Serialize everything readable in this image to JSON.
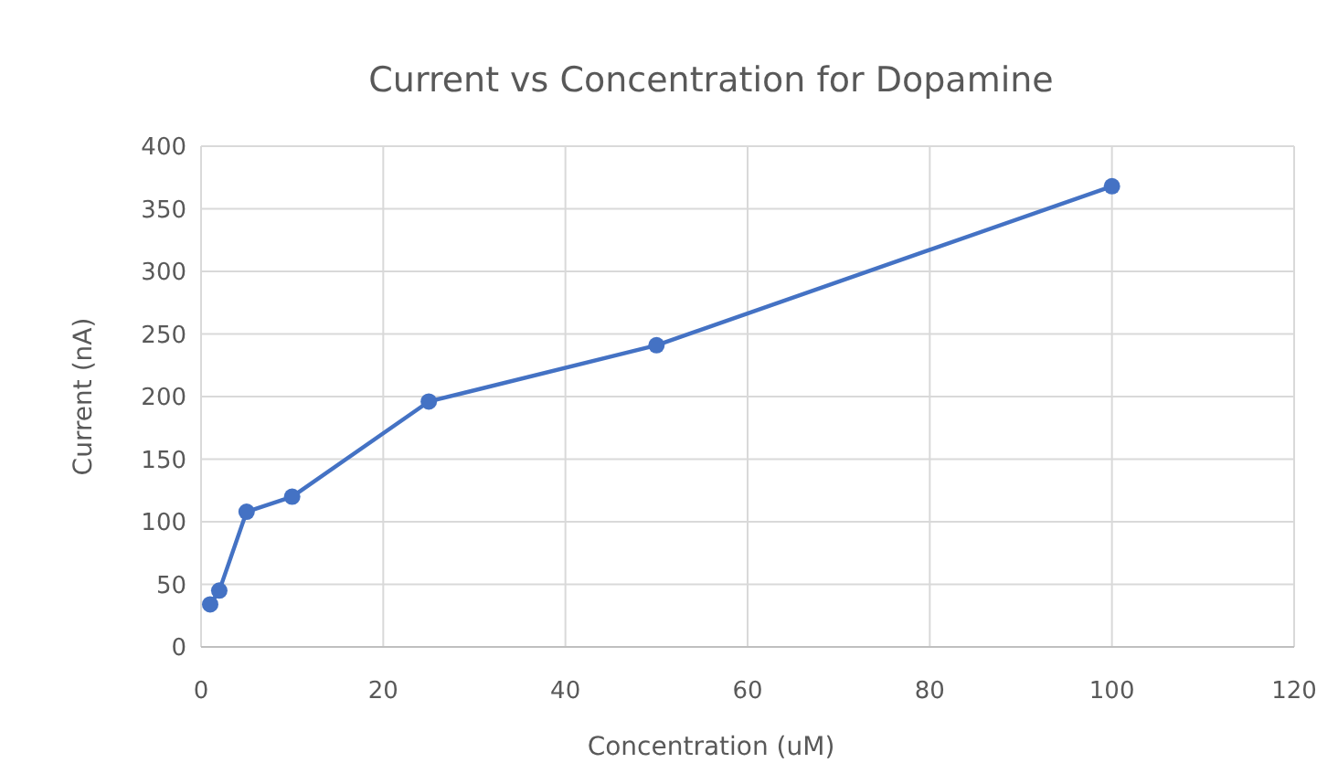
{
  "chart_data": {
    "type": "line",
    "title": "Current vs Concentration for Dopamine",
    "xlabel": "Concentration (uM)",
    "ylabel": "Current (nA)",
    "x": [
      1,
      2,
      5,
      10,
      25,
      50,
      100
    ],
    "series": [
      {
        "color": "#4472c4",
        "values": [
          34,
          45,
          108,
          120,
          196,
          241,
          368
        ]
      }
    ],
    "xlim": [
      0,
      120
    ],
    "xticks": [
      0,
      20,
      40,
      60,
      80,
      100,
      120
    ],
    "ylim": [
      0,
      400
    ],
    "yticks": [
      0,
      50,
      100,
      150,
      200,
      250,
      300,
      350,
      400
    ],
    "grid": true,
    "marker": "circle",
    "line_style": "solid"
  }
}
